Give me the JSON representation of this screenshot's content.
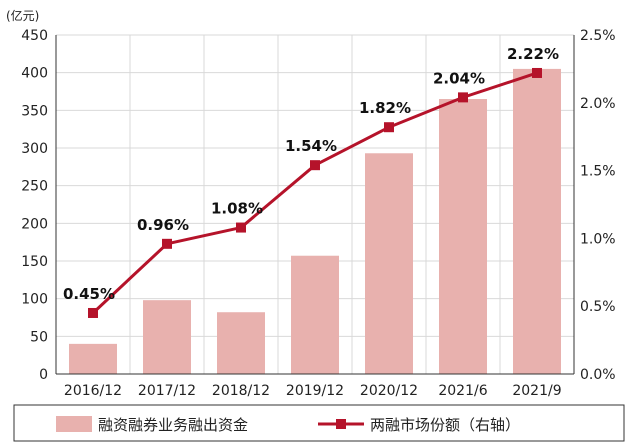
{
  "chart_data": {
    "type": "bar+line",
    "categories": [
      "2016/12",
      "2017/12",
      "2018/12",
      "2019/12",
      "2020/12",
      "2021/6",
      "2021/9"
    ],
    "y_unit": "(亿元)",
    "ylim": [
      0,
      450
    ],
    "y_ticks": [
      "0",
      "50",
      "100",
      "150",
      "200",
      "250",
      "300",
      "350",
      "400",
      "450"
    ],
    "y2lim": [
      0,
      2.5
    ],
    "y2_ticks": [
      "0.0%",
      "0.5%",
      "1.0%",
      "1.5%",
      "2.0%",
      "2.5%"
    ],
    "grid": true,
    "legend_position": "bottom",
    "series": [
      {
        "name": "融资融券业务融出资金",
        "type": "bar",
        "axis": "left",
        "color": "#e8b1ae",
        "values": [
          40,
          98,
          82,
          157,
          293,
          365,
          405
        ]
      },
      {
        "name": "两融市场份额（右轴）",
        "type": "line",
        "axis": "right",
        "color": "#b5132a",
        "values": [
          0.45,
          0.96,
          1.08,
          1.54,
          1.82,
          2.04,
          2.22
        ],
        "labels": [
          "0.45%",
          "0.96%",
          "1.08%",
          "1.54%",
          "1.82%",
          "2.04%",
          "2.22%"
        ]
      }
    ]
  }
}
